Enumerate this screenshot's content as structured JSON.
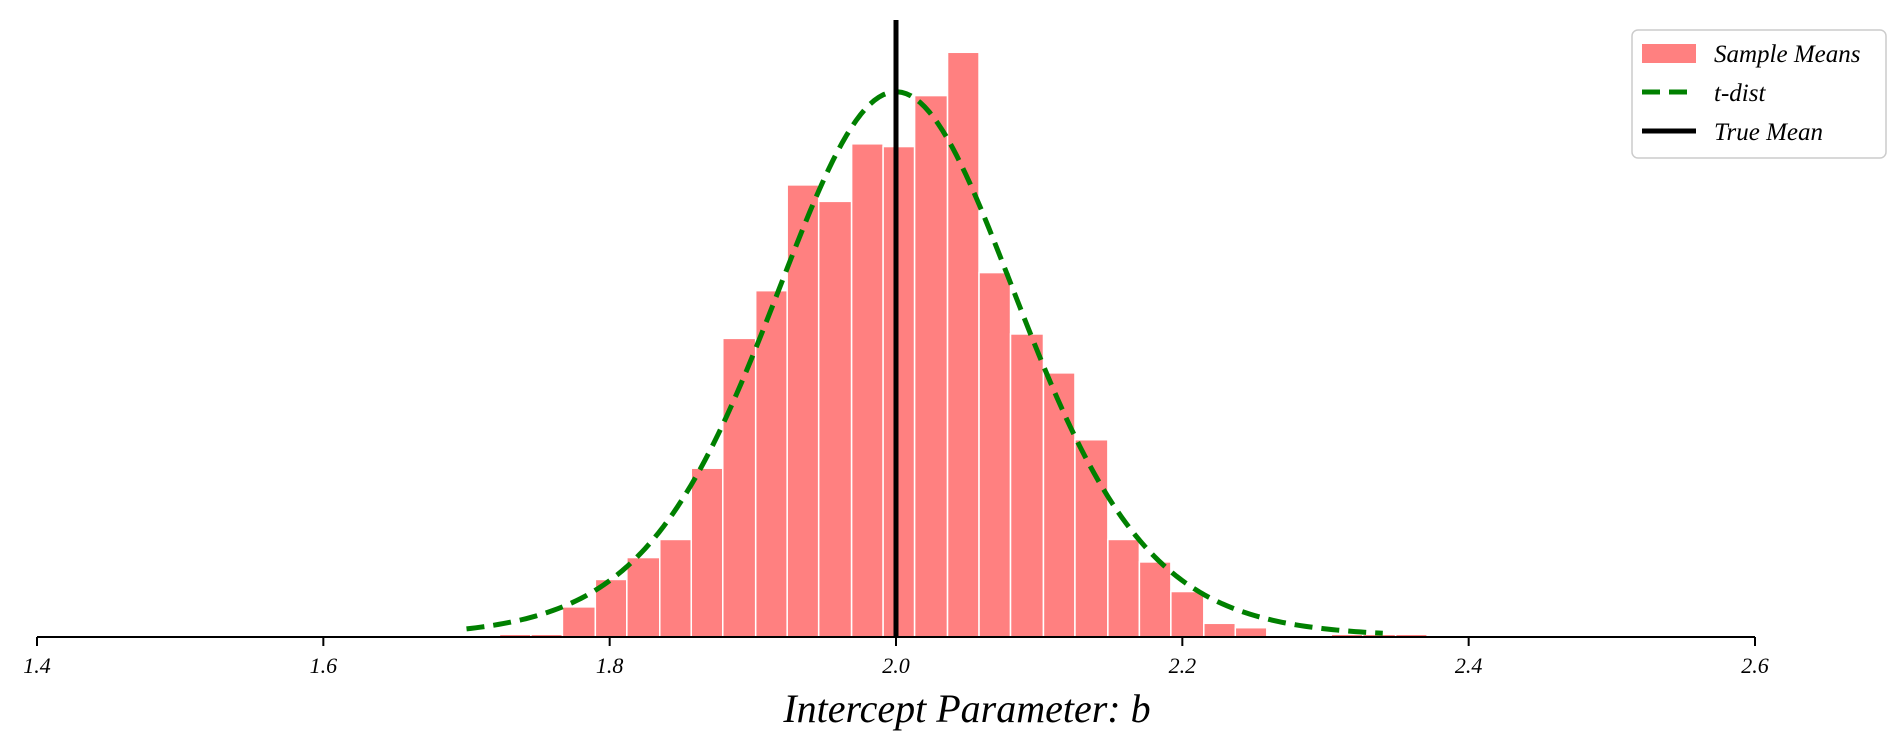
{
  "chart_data": {
    "type": "bar",
    "xlabel": "Intercept Parameter: b",
    "xlim": [
      1.4,
      2.6
    ],
    "x_ticks": [
      "1.4",
      "1.6",
      "1.8",
      "2.0",
      "2.2",
      "2.4",
      "2.6"
    ],
    "grid": false,
    "legend_position": "top-right",
    "histogram": {
      "name": "Sample Means",
      "color": "#ff8080",
      "bin_edges": [
        1.7,
        1.723,
        1.745,
        1.767,
        1.79,
        1.812,
        1.835,
        1.857,
        1.879,
        1.902,
        1.924,
        1.946,
        1.969,
        1.991,
        2.013,
        2.036,
        2.058,
        2.08,
        2.103,
        2.125,
        2.148,
        2.17,
        2.192,
        2.215,
        2.237,
        2.259,
        2.282,
        2.304,
        2.326,
        2.349,
        2.371
      ],
      "heights": [
        0.003,
        0.005,
        0.005,
        0.055,
        0.105,
        0.145,
        0.178,
        0.308,
        0.545,
        0.632,
        0.825,
        0.795,
        0.9,
        0.895,
        0.988,
        1.067,
        0.665,
        0.553,
        0.482,
        0.36,
        0.178,
        0.137,
        0.083,
        0.025,
        0.017,
        0.0,
        0.0,
        0.005,
        0.005,
        0.005
      ]
    },
    "t_dist": {
      "name": "t-dist",
      "color": "#008000",
      "line_style": "dashed",
      "center": 2.0,
      "scale": 0.0885,
      "peak": 0.995,
      "x_range": [
        1.7,
        2.34
      ]
    },
    "true_mean": {
      "name": "True Mean",
      "color": "#000000",
      "x": 2.0
    },
    "legend": [
      "Sample Means",
      "t-dist",
      "True Mean"
    ]
  }
}
